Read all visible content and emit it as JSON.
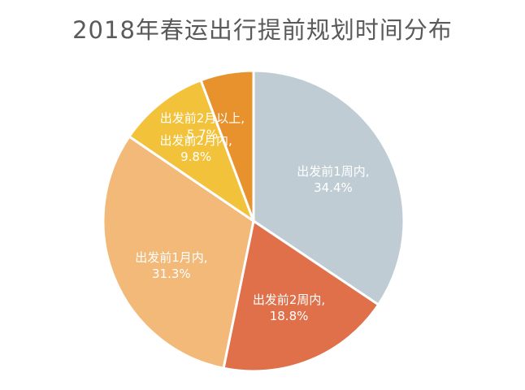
{
  "chart_data": {
    "type": "pie",
    "title": "2018年春运出行提前规划时间分布",
    "slices": [
      {
        "label": "出发前1周内,",
        "value": 34.4,
        "value_label": "34.4%",
        "color": "#bfccd4"
      },
      {
        "label": "出发前2周内,",
        "value": 18.8,
        "value_label": "18.8%",
        "color": "#e0704a"
      },
      {
        "label": "出发前1月内,",
        "value": 31.3,
        "value_label": "31.3%",
        "color": "#f2b978"
      },
      {
        "label": "出发前2月内,",
        "value": 9.8,
        "value_label": "9.8%",
        "color": "#f2c23a"
      },
      {
        "label": "出发前2月以上,",
        "value": 5.7,
        "value_label": "5.7%",
        "color": "#e8922e"
      }
    ],
    "legend": "none",
    "start_angle": "12 o'clock, clockwise"
  }
}
